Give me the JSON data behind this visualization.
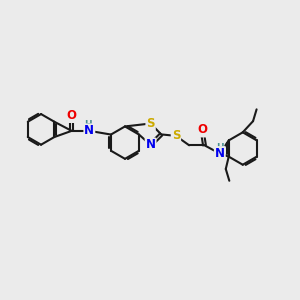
{
  "bg_color": "#ebebeb",
  "bond_color": "#1a1a1a",
  "bond_width": 1.5,
  "dbo": 0.055,
  "atom_colors": {
    "N": "#0000ee",
    "O": "#ee0000",
    "S": "#ccaa00",
    "H": "#4a9090"
  },
  "fs": 8.5,
  "fss": 7.5
}
